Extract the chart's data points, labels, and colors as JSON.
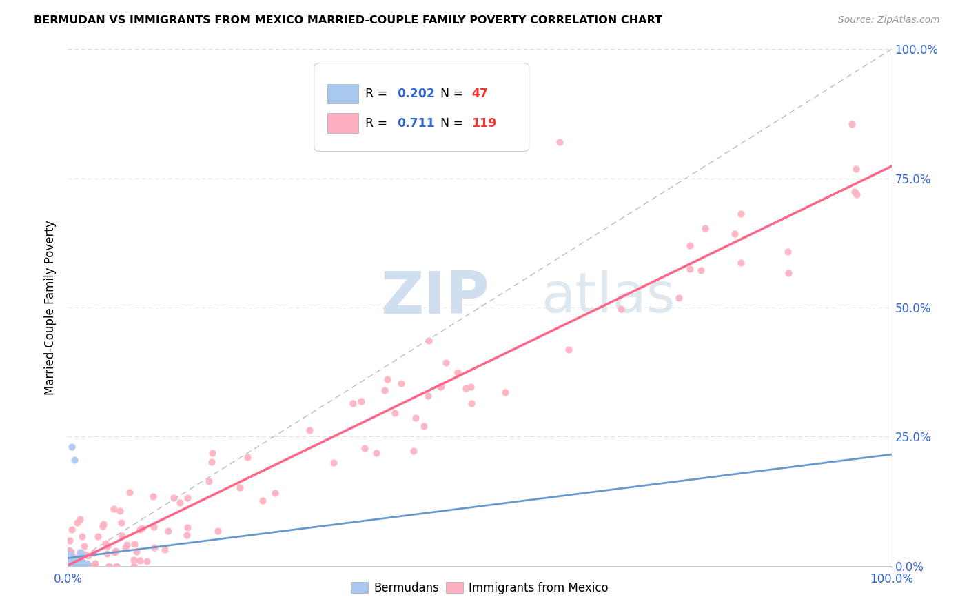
{
  "title": "BERMUDAN VS IMMIGRANTS FROM MEXICO MARRIED-COUPLE FAMILY POVERTY CORRELATION CHART",
  "source": "Source: ZipAtlas.com",
  "ylabel": "Married-Couple Family Poverty",
  "xlim": [
    0,
    1
  ],
  "ylim": [
    0,
    1
  ],
  "xtick_labels": [
    "0.0%",
    "100.0%"
  ],
  "ytick_labels": [
    "0.0%",
    "25.0%",
    "50.0%",
    "75.0%",
    "100.0%"
  ],
  "ytick_positions": [
    0,
    0.25,
    0.5,
    0.75,
    1.0
  ],
  "bermudan_color": "#a8c8f0",
  "mexico_color": "#ffb0c0",
  "bermudan_line_color": "#6699cc",
  "mexico_line_color": "#ff6688",
  "diagonal_color": "#bbbbbb",
  "R_bermudan": 0.202,
  "N_bermudan": 47,
  "R_mexico": 0.711,
  "N_mexico": 119,
  "legend_R_color": "#3366cc",
  "legend_N_color": "#ff3333",
  "background_color": "#ffffff",
  "mexico_trend_slope": 0.75,
  "mexico_trend_intercept": 0.0,
  "bermudan_trend_slope": 0.15,
  "bermudan_trend_intercept": 0.005
}
